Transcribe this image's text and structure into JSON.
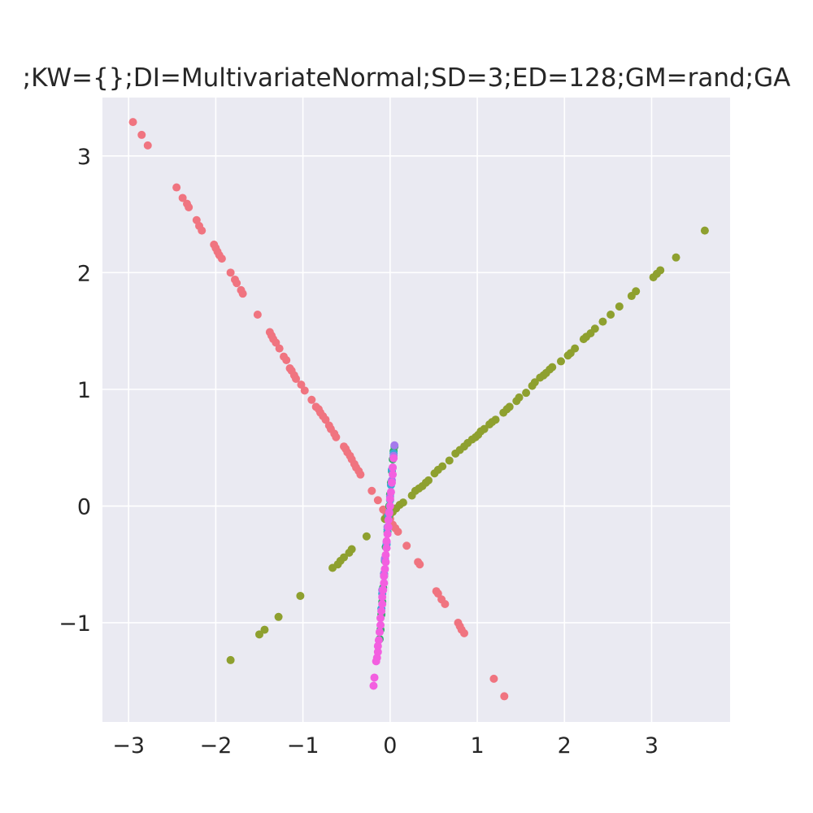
{
  "chart_data": {
    "type": "scatter",
    "title": ";KW={};DI=MultivariateNormal;SD=3;ED=128;GM=rand;GA",
    "xlabel": "",
    "ylabel": "",
    "xlim": [
      -3.3,
      3.9
    ],
    "ylim": [
      -1.85,
      3.5
    ],
    "grid": true,
    "x_ticks": [
      {
        "value": -3,
        "label": "−3"
      },
      {
        "value": -2,
        "label": "−2"
      },
      {
        "value": -1,
        "label": "−1"
      },
      {
        "value": 0,
        "label": "0"
      },
      {
        "value": 1,
        "label": "1"
      },
      {
        "value": 2,
        "label": "2"
      },
      {
        "value": 3,
        "label": "3"
      }
    ],
    "y_ticks": [
      {
        "value": -1,
        "label": "−1"
      },
      {
        "value": 0,
        "label": "0"
      },
      {
        "value": 1,
        "label": "1"
      },
      {
        "value": 2,
        "label": "2"
      },
      {
        "value": 3,
        "label": "3"
      }
    ],
    "series": [
      {
        "color": "#f07480",
        "points": [
          [
            -2.95,
            3.29
          ],
          [
            -2.85,
            3.18
          ],
          [
            -2.78,
            3.09
          ],
          [
            -2.45,
            2.73
          ],
          [
            -2.38,
            2.64
          ],
          [
            -2.33,
            2.59
          ],
          [
            -2.31,
            2.56
          ],
          [
            -2.22,
            2.45
          ],
          [
            -2.19,
            2.4
          ],
          [
            -2.16,
            2.36
          ],
          [
            -2.02,
            2.24
          ],
          [
            -2.0,
            2.21
          ],
          [
            -1.98,
            2.18
          ],
          [
            -1.96,
            2.15
          ],
          [
            -1.93,
            2.12
          ],
          [
            -1.83,
            2.0
          ],
          [
            -1.78,
            1.94
          ],
          [
            -1.76,
            1.91
          ],
          [
            -1.71,
            1.85
          ],
          [
            -1.69,
            1.82
          ],
          [
            -1.52,
            1.64
          ],
          [
            -1.38,
            1.49
          ],
          [
            -1.36,
            1.46
          ],
          [
            -1.34,
            1.43
          ],
          [
            -1.31,
            1.4
          ],
          [
            -1.27,
            1.35
          ],
          [
            -1.22,
            1.28
          ],
          [
            -1.19,
            1.25
          ],
          [
            -1.15,
            1.18
          ],
          [
            -1.13,
            1.16
          ],
          [
            -1.1,
            1.12
          ],
          [
            -1.08,
            1.09
          ],
          [
            -1.02,
            1.04
          ],
          [
            -0.98,
            0.99
          ],
          [
            -0.9,
            0.91
          ],
          [
            -0.85,
            0.85
          ],
          [
            -0.82,
            0.83
          ],
          [
            -0.8,
            0.8
          ],
          [
            -0.77,
            0.77
          ],
          [
            -0.74,
            0.74
          ],
          [
            -0.7,
            0.69
          ],
          [
            -0.68,
            0.66
          ],
          [
            -0.64,
            0.62
          ],
          [
            -0.62,
            0.59
          ],
          [
            -0.53,
            0.51
          ],
          [
            -0.51,
            0.49
          ],
          [
            -0.49,
            0.46
          ],
          [
            -0.46,
            0.43
          ],
          [
            -0.44,
            0.4
          ],
          [
            -0.41,
            0.36
          ],
          [
            -0.39,
            0.33
          ],
          [
            -0.36,
            0.3
          ],
          [
            -0.34,
            0.27
          ],
          [
            -0.21,
            0.13
          ],
          [
            -0.14,
            0.05
          ],
          [
            -0.08,
            -0.03
          ],
          [
            -0.04,
            -0.07
          ],
          [
            0.0,
            -0.11
          ],
          [
            0.03,
            -0.16
          ],
          [
            0.06,
            -0.19
          ],
          [
            0.09,
            -0.22
          ],
          [
            0.19,
            -0.34
          ],
          [
            0.32,
            -0.48
          ],
          [
            0.34,
            -0.5
          ],
          [
            0.53,
            -0.73
          ],
          [
            0.55,
            -0.75
          ],
          [
            0.59,
            -0.8
          ],
          [
            0.63,
            -0.84
          ],
          [
            0.78,
            -1.0
          ],
          [
            0.8,
            -1.03
          ],
          [
            0.82,
            -1.06
          ],
          [
            0.85,
            -1.09
          ],
          [
            1.19,
            -1.48
          ],
          [
            1.31,
            -1.63
          ]
        ]
      },
      {
        "color": "#8ea02f",
        "points": [
          [
            3.61,
            2.36
          ],
          [
            3.28,
            2.13
          ],
          [
            3.1,
            2.02
          ],
          [
            3.06,
            1.99
          ],
          [
            3.02,
            1.96
          ],
          [
            2.82,
            1.84
          ],
          [
            2.77,
            1.8
          ],
          [
            2.63,
            1.71
          ],
          [
            2.53,
            1.64
          ],
          [
            2.44,
            1.58
          ],
          [
            2.35,
            1.52
          ],
          [
            2.3,
            1.48
          ],
          [
            2.25,
            1.45
          ],
          [
            2.22,
            1.43
          ],
          [
            2.12,
            1.35
          ],
          [
            2.07,
            1.31
          ],
          [
            2.04,
            1.29
          ],
          [
            1.96,
            1.24
          ],
          [
            1.86,
            1.19
          ],
          [
            1.83,
            1.17
          ],
          [
            1.79,
            1.14
          ],
          [
            1.76,
            1.12
          ],
          [
            1.72,
            1.1
          ],
          [
            1.66,
            1.06
          ],
          [
            1.63,
            1.03
          ],
          [
            1.56,
            0.97
          ],
          [
            1.48,
            0.93
          ],
          [
            1.45,
            0.9
          ],
          [
            1.37,
            0.85
          ],
          [
            1.34,
            0.83
          ],
          [
            1.3,
            0.8
          ],
          [
            1.21,
            0.74
          ],
          [
            1.17,
            0.72
          ],
          [
            1.14,
            0.7
          ],
          [
            1.08,
            0.66
          ],
          [
            1.04,
            0.64
          ],
          [
            1.01,
            0.61
          ],
          [
            0.98,
            0.59
          ],
          [
            0.94,
            0.57
          ],
          [
            0.89,
            0.54
          ],
          [
            0.85,
            0.51
          ],
          [
            0.8,
            0.48
          ],
          [
            0.75,
            0.45
          ],
          [
            0.68,
            0.39
          ],
          [
            0.6,
            0.34
          ],
          [
            0.55,
            0.31
          ],
          [
            0.51,
            0.28
          ],
          [
            0.44,
            0.22
          ],
          [
            0.41,
            0.2
          ],
          [
            0.37,
            0.17
          ],
          [
            0.33,
            0.15
          ],
          [
            0.29,
            0.13
          ],
          [
            0.25,
            0.09
          ],
          [
            0.15,
            0.03
          ],
          [
            0.11,
            0.01
          ],
          [
            0.07,
            -0.02
          ],
          [
            0.03,
            -0.05
          ],
          [
            0.0,
            -0.07
          ],
          [
            -0.03,
            -0.09
          ],
          [
            -0.06,
            -0.11
          ],
          [
            -0.27,
            -0.26
          ],
          [
            -0.44,
            -0.37
          ],
          [
            -0.47,
            -0.4
          ],
          [
            -0.53,
            -0.44
          ],
          [
            -0.57,
            -0.47
          ],
          [
            -0.6,
            -0.5
          ],
          [
            -0.66,
            -0.53
          ],
          [
            -1.03,
            -0.77
          ],
          [
            -1.28,
            -0.95
          ],
          [
            -1.44,
            -1.06
          ],
          [
            -1.5,
            -1.1
          ],
          [
            -1.83,
            -1.32
          ]
        ]
      },
      {
        "color": "#31b06a",
        "points": [
          [
            0.05,
            0.51
          ],
          [
            0.04,
            0.47
          ],
          [
            0.03,
            0.4
          ],
          [
            0.02,
            0.3
          ],
          [
            0.01,
            0.2
          ],
          [
            0.0,
            0.1
          ],
          [
            -0.01,
            0.0
          ],
          [
            -0.02,
            -0.1
          ],
          [
            -0.03,
            -0.22
          ],
          [
            -0.05,
            -0.35
          ],
          [
            -0.06,
            -0.47
          ],
          [
            -0.07,
            -0.58
          ],
          [
            -0.08,
            -0.7
          ],
          [
            -0.09,
            -0.82
          ],
          [
            -0.1,
            -0.93
          ],
          [
            -0.11,
            -1.06
          ],
          [
            -0.12,
            -1.14
          ]
        ]
      },
      {
        "color": "#3ba9d6",
        "points": [
          [
            0.04,
            0.45
          ],
          [
            0.02,
            0.31
          ],
          [
            0.01,
            0.18
          ],
          [
            0.0,
            0.05
          ],
          [
            -0.02,
            -0.08
          ],
          [
            -0.03,
            -0.2
          ],
          [
            -0.04,
            -0.33
          ],
          [
            -0.06,
            -0.46
          ],
          [
            -0.07,
            -0.6
          ],
          [
            -0.09,
            -0.75
          ],
          [
            -0.1,
            -0.88
          ]
        ]
      },
      {
        "color": "#a579ec",
        "points": [
          [
            0.05,
            0.52
          ],
          [
            0.04,
            0.43
          ],
          [
            0.03,
            0.33
          ],
          [
            0.02,
            0.22
          ],
          [
            0.0,
            0.08
          ],
          [
            -0.01,
            -0.05
          ],
          [
            -0.03,
            -0.18
          ],
          [
            -0.04,
            -0.31
          ],
          [
            -0.06,
            -0.45
          ],
          [
            -0.07,
            -0.58
          ],
          [
            -0.09,
            -0.72
          ]
        ]
      },
      {
        "color": "#f35fe0",
        "points": [
          [
            0.04,
            0.41
          ],
          [
            0.03,
            0.33
          ],
          [
            0.03,
            0.27
          ],
          [
            0.02,
            0.2
          ],
          [
            0.01,
            0.12
          ],
          [
            0.0,
            0.06
          ],
          [
            0.0,
            0.0
          ],
          [
            -0.01,
            -0.06
          ],
          [
            -0.02,
            -0.12
          ],
          [
            -0.02,
            -0.18
          ],
          [
            -0.03,
            -0.24
          ],
          [
            -0.04,
            -0.3
          ],
          [
            -0.04,
            -0.36
          ],
          [
            -0.05,
            -0.42
          ],
          [
            -0.05,
            -0.48
          ],
          [
            -0.06,
            -0.54
          ],
          [
            -0.07,
            -0.6
          ],
          [
            -0.07,
            -0.66
          ],
          [
            -0.08,
            -0.72
          ],
          [
            -0.09,
            -0.78
          ],
          [
            -0.09,
            -0.84
          ],
          [
            -0.1,
            -0.9
          ],
          [
            -0.11,
            -0.96
          ],
          [
            -0.11,
            -1.02
          ],
          [
            -0.12,
            -1.08
          ],
          [
            -0.13,
            -1.15
          ],
          [
            -0.14,
            -1.2
          ],
          [
            -0.14,
            -1.25
          ],
          [
            -0.15,
            -1.3
          ],
          [
            -0.16,
            -1.33
          ],
          [
            -0.18,
            -1.47
          ],
          [
            -0.19,
            -1.54
          ]
        ]
      }
    ]
  }
}
